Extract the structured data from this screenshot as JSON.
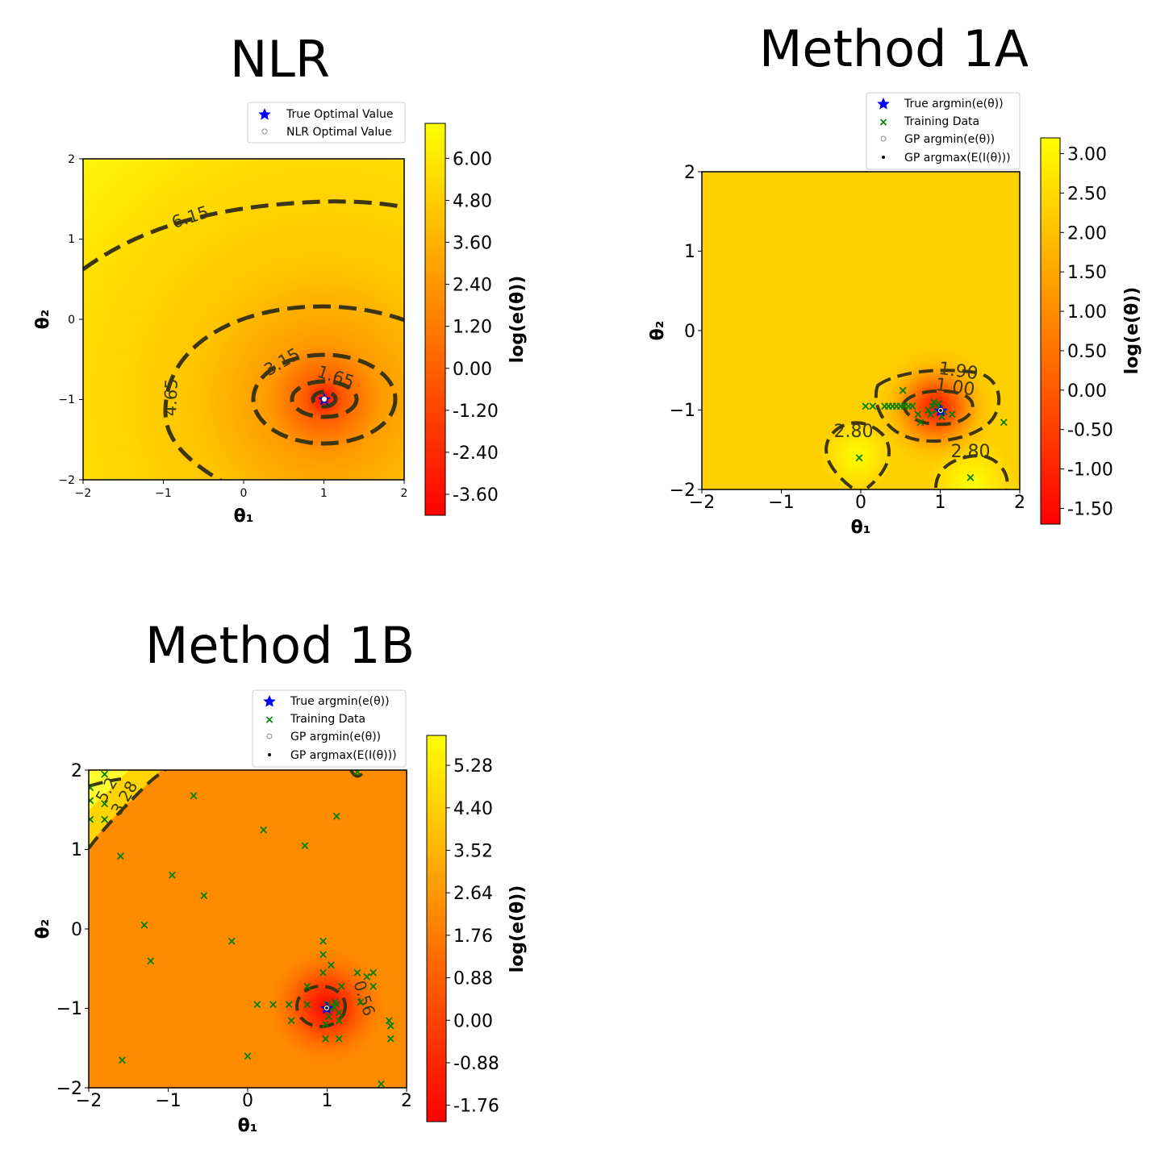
{
  "chart_data": [
    {
      "type": "heatmap",
      "title": "NLR",
      "xlabel": "θ₁",
      "ylabel": "θ₂",
      "xlim": [
        -2,
        2
      ],
      "ylim": [
        -2,
        2
      ],
      "xticks": [
        "−2",
        "−1",
        "0",
        "1",
        "2"
      ],
      "yticks": [
        "−2",
        "−1",
        "0",
        "1",
        "2"
      ],
      "colorbar": {
        "label": "log(e(θ))",
        "range": [
          -4.2,
          7.0
        ],
        "ticks": [
          6.0,
          4.8,
          3.6,
          2.4,
          1.2,
          0.0,
          -1.2,
          -2.4,
          -3.6
        ],
        "tick_labels": [
          "6.00",
          "4.80",
          "3.60",
          "2.40",
          "1.20",
          "0.00",
          "-1.20",
          "-2.40",
          "-3.60"
        ]
      },
      "colormap": [
        "#ff0000",
        "#ff8000",
        "#ffff00"
      ],
      "contour_labels": [
        {
          "text": "6.15",
          "x": -0.65,
          "y": 1.25,
          "angle": -18
        },
        {
          "text": "3.15",
          "x": 0.5,
          "y": -0.55,
          "angle": -30
        },
        {
          "text": "1.65",
          "x": 1.12,
          "y": -0.75,
          "angle": 20
        },
        {
          "text": "4.65",
          "x": -0.92,
          "y": -0.98,
          "angle": -88
        }
      ],
      "legend": {
        "position": "top-right",
        "entries": [
          {
            "label": "True Optimal Value",
            "marker": "star",
            "color": "#0000ff"
          },
          {
            "label": "NLR Optimal Value",
            "marker": "open-circle",
            "color": "#777777"
          }
        ]
      },
      "points": {
        "true_optimum": {
          "x": 1.0,
          "y": -1.0
        },
        "nlr_optimum": {
          "x": 1.0,
          "y": -1.0
        }
      }
    },
    {
      "type": "heatmap",
      "title": "Method 1A",
      "xlabel": "θ₁",
      "ylabel": "θ₂",
      "xlim": [
        -2,
        2
      ],
      "ylim": [
        -2,
        2
      ],
      "xticks": [
        "−2",
        "−1",
        "0",
        "1",
        "2"
      ],
      "yticks": [
        "−2",
        "−1",
        "0",
        "1",
        "2"
      ],
      "colorbar": {
        "label": "log(e(θ))",
        "range": [
          -1.7,
          3.2
        ],
        "ticks": [
          3.0,
          2.5,
          2.0,
          1.5,
          1.0,
          0.5,
          0.0,
          -0.5,
          -1.0,
          -1.5
        ],
        "tick_labels": [
          "3.00",
          "2.50",
          "2.00",
          "1.50",
          "1.00",
          "0.50",
          "0.00",
          "-0.50",
          "-1.00",
          "-1.50"
        ]
      },
      "colormap": [
        "#ff0000",
        "#ff8000",
        "#ffff00"
      ],
      "contour_labels": [
        {
          "text": "1.90",
          "x": 1.2,
          "y": -0.52,
          "angle": 8
        },
        {
          "text": "1.00",
          "x": 1.15,
          "y": -0.74,
          "angle": 8
        },
        {
          "text": "2.80",
          "x": -0.1,
          "y": -1.25,
          "angle": 0
        },
        {
          "text": "2.80",
          "x": 1.37,
          "y": -1.52,
          "angle": 0
        }
      ],
      "legend": {
        "position": "top-right",
        "entries": [
          {
            "label": "True argmin(e(θ))",
            "marker": "star",
            "color": "#0000ff"
          },
          {
            "label": "Training Data",
            "marker": "x",
            "color": "#008000"
          },
          {
            "label": "GP argmin(e(θ))",
            "marker": "open-circle",
            "color": "#777777"
          },
          {
            "label": "GP argmax(E(I(θ)))",
            "marker": "dot",
            "color": "#000000"
          }
        ]
      },
      "training_data": {
        "x": [
          0.06,
          0.15,
          0.3,
          0.35,
          0.4,
          0.45,
          0.5,
          0.55,
          0.6,
          0.65,
          0.53,
          0.72,
          0.75,
          0.85,
          0.9,
          0.95,
          1.0,
          1.05,
          0.88,
          0.92,
          1.15,
          1.8,
          -0.02,
          1.38,
          0.98,
          1.02
        ],
        "y": [
          -0.95,
          -0.95,
          -0.95,
          -0.95,
          -0.95,
          -0.95,
          -0.95,
          -0.95,
          -0.95,
          -0.95,
          -0.75,
          -1.05,
          -1.15,
          -1.0,
          -0.95,
          -1.0,
          -0.98,
          -1.02,
          -1.05,
          -0.9,
          -1.05,
          -1.15,
          -1.6,
          -1.85,
          -0.92,
          -1.08
        ]
      },
      "points": {
        "true_argmin": {
          "x": 1.0,
          "y": -1.0
        },
        "gp_argmin": {
          "x": 1.0,
          "y": -1.0
        },
        "gp_argmax_ei": {
          "x": 1.0,
          "y": -1.0
        }
      }
    },
    {
      "type": "heatmap",
      "title": "Method 1B",
      "xlabel": "θ₁",
      "ylabel": "θ₂",
      "xlim": [
        -2,
        2
      ],
      "ylim": [
        -2,
        2
      ],
      "xticks": [
        "−2",
        "−1",
        "0",
        "1",
        "2"
      ],
      "yticks": [
        "−2",
        "−1",
        "0",
        "1",
        "2"
      ],
      "colorbar": {
        "label": "log(e(θ))",
        "range": [
          -2.1,
          5.9
        ],
        "ticks": [
          5.28,
          4.4,
          3.52,
          2.64,
          1.76,
          0.88,
          0.0,
          -0.88,
          -1.76
        ],
        "tick_labels": [
          "5.28",
          "4.40",
          "3.52",
          "2.64",
          "1.76",
          "0.88",
          "0.00",
          "-0.88",
          "-1.76"
        ]
      },
      "colormap": [
        "#ff0000",
        "#ff8000",
        "#ffff00"
      ],
      "contour_labels": [
        {
          "text": "5.2",
          "x": -1.75,
          "y": 1.8,
          "angle": -60
        },
        {
          "text": "3.28",
          "x": -1.55,
          "y": 1.6,
          "angle": -60
        },
        {
          "text": "0.56",
          "x": 1.38,
          "y": -0.9,
          "angle": 72
        }
      ],
      "legend": {
        "position": "top-right",
        "entries": [
          {
            "label": "True argmin(e(θ))",
            "marker": "star",
            "color": "#0000ff"
          },
          {
            "label": "Training Data",
            "marker": "x",
            "color": "#008000"
          },
          {
            "label": "GP argmin(e(θ))",
            "marker": "open-circle",
            "color": "#777777"
          },
          {
            "label": "GP argmax(E(I(θ)))",
            "marker": "dot",
            "color": "#000000"
          }
        ]
      },
      "training_data": {
        "x": [
          -1.98,
          -1.98,
          -1.98,
          -1.8,
          -1.8,
          -1.8,
          -1.6,
          -1.3,
          -1.22,
          -0.95,
          -0.68,
          -0.55,
          -0.2,
          0.2,
          0.12,
          0.32,
          0.52,
          0.55,
          0.72,
          0.75,
          0.75,
          0.95,
          0.95,
          0.98,
          1.0,
          1.02,
          1.05,
          1.08,
          1.1,
          1.12,
          1.15,
          1.15,
          1.15,
          1.18,
          0.98,
          1.05,
          1.38,
          1.42,
          1.5,
          1.58,
          1.58,
          1.78,
          1.8,
          1.8,
          1.68,
          -1.58,
          0.0,
          1.38,
          0.95,
          1.12
        ],
        "y": [
          1.62,
          1.38,
          1.78,
          1.38,
          1.58,
          1.95,
          0.92,
          0.05,
          -0.4,
          0.68,
          1.68,
          0.42,
          -0.15,
          1.25,
          -0.95,
          -0.95,
          -0.95,
          -1.15,
          1.05,
          -0.72,
          -0.95,
          -0.32,
          -0.55,
          -1.38,
          -0.95,
          -1.1,
          -1.0,
          -0.98,
          -0.92,
          -0.95,
          -1.05,
          -1.15,
          -1.38,
          -0.72,
          -1.2,
          -0.45,
          -0.55,
          -0.92,
          -0.6,
          -0.55,
          -0.72,
          -1.15,
          -1.22,
          -1.38,
          -1.95,
          -1.65,
          -1.6,
          1.98,
          -0.15,
          1.42
        ],
        "note": ""
      },
      "points": {
        "true_argmin": {
          "x": 1.0,
          "y": -1.0
        },
        "gp_argmin": {
          "x": 1.0,
          "y": -1.0
        },
        "gp_argmax_ei": {
          "x": 1.0,
          "y": -1.0
        }
      }
    }
  ]
}
